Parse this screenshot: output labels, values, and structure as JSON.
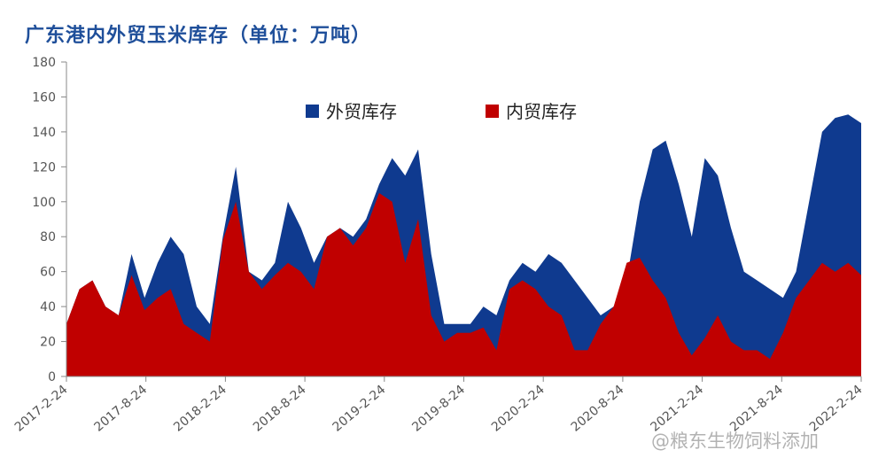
{
  "chart_data": {
    "type": "area",
    "title": "广东港内外贸玉米库存（单位：万吨）",
    "xlabel": "",
    "ylabel": "",
    "ylim": [
      0,
      180
    ],
    "yticks": [
      0,
      20,
      40,
      60,
      80,
      100,
      120,
      140,
      160,
      180
    ],
    "xticks": [
      "2017-2-24",
      "2017-8-24",
      "2018-2-24",
      "2018-8-24",
      "2019-2-24",
      "2019-8-24",
      "2020-2-24",
      "2020-8-24",
      "2021-2-24",
      "2021-8-24",
      "2022-2-24"
    ],
    "stacked": false,
    "grid": false,
    "legend_position": "top-center",
    "x": [
      "2017-02",
      "2017-03",
      "2017-04",
      "2017-05",
      "2017-06",
      "2017-07",
      "2017-08",
      "2017-09",
      "2017-10",
      "2017-11",
      "2017-12",
      "2018-01",
      "2018-02",
      "2018-03",
      "2018-04",
      "2018-05",
      "2018-06",
      "2018-07",
      "2018-08",
      "2018-09",
      "2018-10",
      "2018-11",
      "2018-12",
      "2019-01",
      "2019-02",
      "2019-03",
      "2019-04",
      "2019-05",
      "2019-06",
      "2019-07",
      "2019-08",
      "2019-09",
      "2019-10",
      "2019-11",
      "2019-12",
      "2020-01",
      "2020-02",
      "2020-03",
      "2020-04",
      "2020-05",
      "2020-06",
      "2020-07",
      "2020-08",
      "2020-09",
      "2020-10",
      "2020-11",
      "2020-12",
      "2021-01",
      "2021-02",
      "2021-03",
      "2021-04",
      "2021-05",
      "2021-06",
      "2021-07",
      "2021-08",
      "2021-09",
      "2021-10",
      "2021-11",
      "2021-12",
      "2022-01",
      "2022-02",
      "2022-03"
    ],
    "series": [
      {
        "name": "外贸库存",
        "color": "#0f3a8f",
        "values": [
          30,
          50,
          55,
          40,
          35,
          70,
          45,
          65,
          80,
          70,
          40,
          30,
          80,
          120,
          60,
          55,
          65,
          100,
          85,
          65,
          80,
          85,
          80,
          90,
          110,
          125,
          115,
          130,
          70,
          30,
          30,
          30,
          40,
          35,
          55,
          65,
          60,
          70,
          65,
          55,
          45,
          35,
          40,
          55,
          100,
          130,
          135,
          110,
          80,
          125,
          115,
          85,
          60,
          55,
          50,
          45,
          60,
          100,
          140,
          148,
          150,
          145
        ]
      },
      {
        "name": "内贸库存",
        "color": "#c00000",
        "values": [
          30,
          50,
          55,
          40,
          35,
          58,
          38,
          45,
          50,
          30,
          25,
          20,
          78,
          100,
          60,
          50,
          58,
          65,
          60,
          50,
          80,
          85,
          75,
          85,
          105,
          100,
          65,
          90,
          35,
          20,
          25,
          25,
          28,
          15,
          50,
          55,
          50,
          40,
          35,
          15,
          15,
          30,
          40,
          65,
          68,
          55,
          45,
          25,
          12,
          22,
          35,
          20,
          15,
          15,
          10,
          25,
          45,
          55,
          65,
          60,
          65,
          58
        ]
      }
    ]
  },
  "watermark": "@粮东生物饲料添加"
}
